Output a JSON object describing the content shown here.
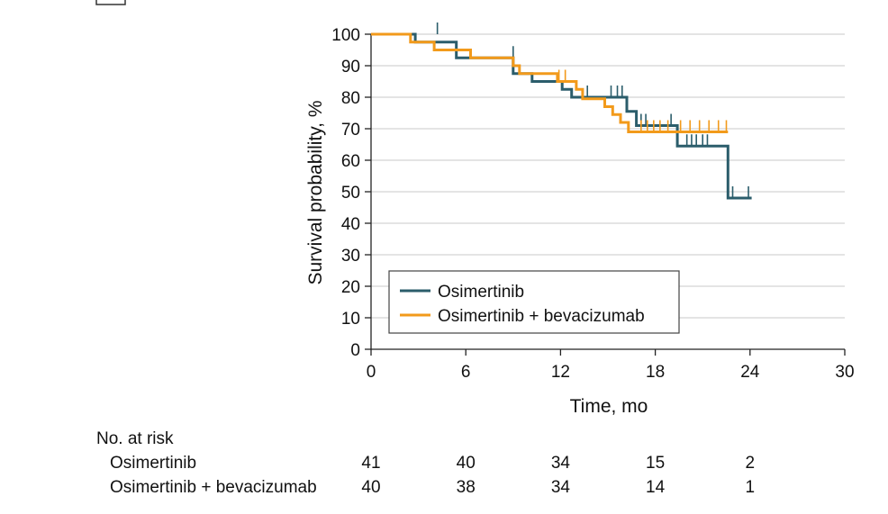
{
  "chart_data": {
    "type": "line",
    "chart_kind": "kaplan-meier",
    "xlabel": "Time, mo",
    "ylabel": "Survival probability, %",
    "xlim": [
      0,
      30
    ],
    "ylim": [
      0,
      100
    ],
    "xticks": [
      0,
      6,
      12,
      18,
      24,
      30
    ],
    "yticks": [
      0,
      10,
      20,
      30,
      40,
      50,
      60,
      70,
      80,
      90,
      100
    ],
    "grid": "horizontal",
    "legend_position": "bottom-right",
    "series": [
      {
        "name": "Osimertinib",
        "color": "#2b5d6b",
        "steps": [
          [
            0,
            100
          ],
          [
            2.8,
            100
          ],
          [
            2.8,
            97.5
          ],
          [
            5.4,
            97.5
          ],
          [
            5.4,
            92.5
          ],
          [
            9.0,
            92.5
          ],
          [
            9.0,
            87.5
          ],
          [
            10.2,
            87.5
          ],
          [
            10.2,
            85.0
          ],
          [
            12.1,
            85.0
          ],
          [
            12.1,
            82.5
          ],
          [
            12.7,
            82.5
          ],
          [
            12.7,
            80.0
          ],
          [
            16.2,
            80.0
          ],
          [
            16.2,
            75.5
          ],
          [
            16.8,
            75.5
          ],
          [
            16.8,
            71.0
          ],
          [
            19.4,
            71.0
          ],
          [
            19.4,
            64.5
          ],
          [
            22.6,
            64.5
          ],
          [
            22.6,
            48.0
          ],
          [
            24.1,
            48.0
          ]
        ],
        "censor": [
          [
            4.2,
            100
          ],
          [
            9.0,
            92.5
          ],
          [
            13.7,
            80
          ],
          [
            15.2,
            80
          ],
          [
            15.6,
            80
          ],
          [
            15.9,
            80
          ],
          [
            17.1,
            71
          ],
          [
            17.4,
            71
          ],
          [
            19.0,
            71
          ],
          [
            20.0,
            64.5
          ],
          [
            20.3,
            64.5
          ],
          [
            20.6,
            64.5
          ],
          [
            21.0,
            64.5
          ],
          [
            21.3,
            64.5
          ],
          [
            22.9,
            48
          ],
          [
            23.9,
            48
          ]
        ]
      },
      {
        "name": "Osimertinib + bevacizumab",
        "color": "#f29a1b",
        "steps": [
          [
            0,
            100
          ],
          [
            2.5,
            100
          ],
          [
            2.5,
            97.5
          ],
          [
            4.0,
            97.5
          ],
          [
            4.0,
            95.0
          ],
          [
            6.3,
            95.0
          ],
          [
            6.3,
            92.5
          ],
          [
            9.0,
            92.5
          ],
          [
            9.0,
            90.0
          ],
          [
            9.4,
            90.0
          ],
          [
            9.4,
            87.5
          ],
          [
            11.8,
            87.5
          ],
          [
            11.8,
            85.0
          ],
          [
            13.0,
            85.0
          ],
          [
            13.0,
            82.5
          ],
          [
            13.4,
            82.5
          ],
          [
            13.4,
            79.5
          ],
          [
            14.8,
            79.5
          ],
          [
            14.8,
            77.0
          ],
          [
            15.3,
            77.0
          ],
          [
            15.3,
            74.5
          ],
          [
            15.8,
            74.5
          ],
          [
            15.8,
            72.0
          ],
          [
            16.3,
            72.0
          ],
          [
            16.3,
            69.0
          ],
          [
            22.6,
            69.0
          ]
        ],
        "censor": [
          [
            11.9,
            85
          ],
          [
            12.3,
            85
          ],
          [
            17.1,
            69
          ],
          [
            17.5,
            69
          ],
          [
            17.9,
            69
          ],
          [
            18.3,
            69
          ],
          [
            18.8,
            69
          ],
          [
            19.6,
            69
          ],
          [
            20.2,
            69
          ],
          [
            20.8,
            69
          ],
          [
            21.4,
            69
          ],
          [
            22.0,
            69
          ],
          [
            22.5,
            69
          ]
        ]
      }
    ]
  },
  "risk_table": {
    "title": "No. at risk",
    "times": [
      0,
      6,
      12,
      18,
      24
    ],
    "rows": [
      {
        "label": "Osimertinib",
        "counts": [
          "41",
          "40",
          "34",
          "15",
          "2"
        ]
      },
      {
        "label": "Osimertinib + bevacizumab",
        "counts": [
          "40",
          "38",
          "34",
          "14",
          "1"
        ]
      }
    ]
  }
}
